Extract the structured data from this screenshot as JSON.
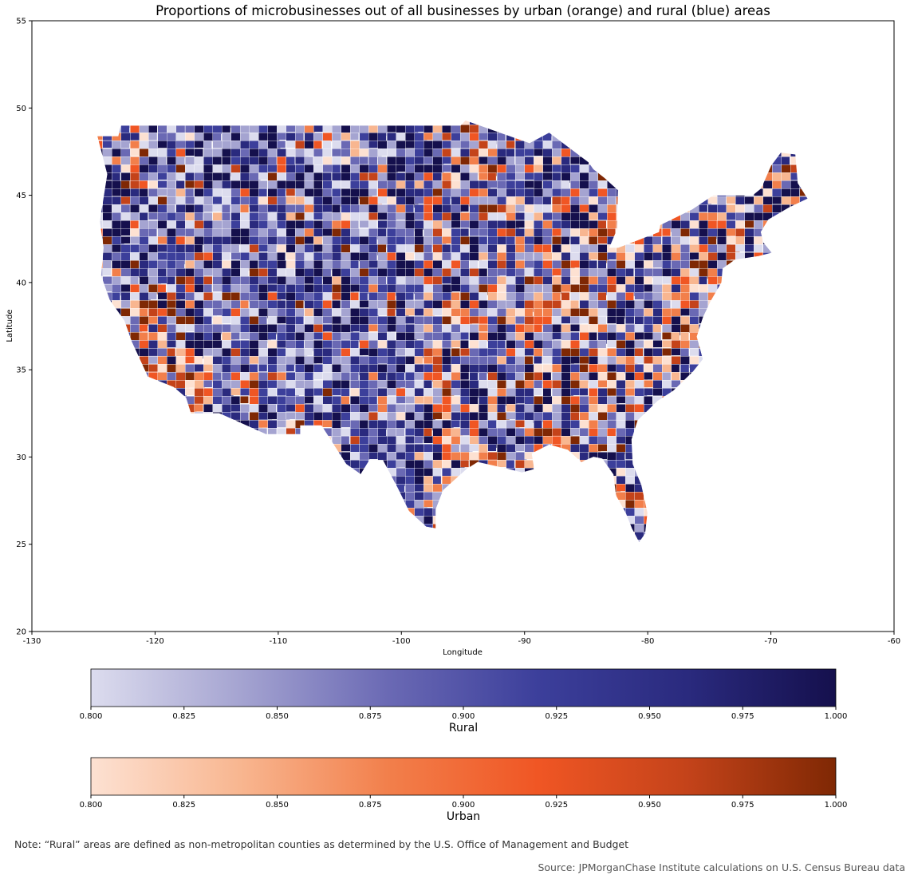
{
  "title": "Proportions of microbusinesses out of all businesses by urban (orange) and rural (blue) areas",
  "map": {
    "xlabel": "Longitude",
    "ylabel": "Latitude",
    "xlim": [
      -130,
      -60
    ],
    "ylim": [
      20,
      55
    ],
    "x_ticks": [
      "-130",
      "-120",
      "-110",
      "-100",
      "-90",
      "-80",
      "-70",
      "-60"
    ],
    "y_ticks": [
      "20",
      "25",
      "30",
      "35",
      "40",
      "45",
      "50",
      "55"
    ]
  },
  "colorbars": [
    {
      "label": "Rural",
      "range": [
        0.8,
        1.0
      ],
      "colors": [
        "#dcdcee",
        "#a5a4d1",
        "#6a69b4",
        "#3c3f9b",
        "#2a2a7e",
        "#15104d"
      ],
      "ticks": [
        "0.800",
        "0.825",
        "0.850",
        "0.875",
        "0.900",
        "0.925",
        "0.950",
        "0.975",
        "1.000"
      ]
    },
    {
      "label": "Urban",
      "range": [
        0.8,
        1.0
      ],
      "colors": [
        "#fde1d2",
        "#f8b690",
        "#f27f4b",
        "#f05624",
        "#c4431a",
        "#7f2804"
      ],
      "ticks": [
        "0.800",
        "0.825",
        "0.850",
        "0.875",
        "0.900",
        "0.925",
        "0.950",
        "0.975",
        "1.000"
      ]
    }
  ],
  "note": "Note: “Rural” areas are defined as non-metropolitan counties as determined by the U.S. Office of Management and Budget",
  "source": "Source: JPMorganChase Institute calculations on U.S. Census Bureau data"
}
